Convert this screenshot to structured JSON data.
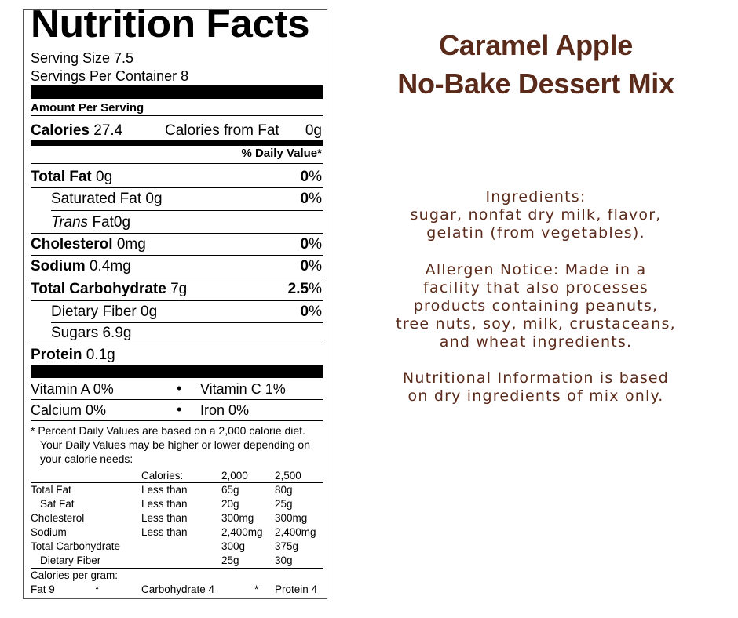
{
  "product": {
    "title_line1": "Caramel Apple",
    "title_line2": "No-Bake Dessert Mix"
  },
  "info": {
    "ingredients": [
      "Ingredients:",
      "sugar, nonfat dry milk, flavor,",
      "gelatin (from vegetables)."
    ],
    "allergen": [
      "Allergen Notice: Made in a",
      "facility that also processes",
      "products containing peanuts,",
      "tree nuts, soy, milk, crustaceans,",
      "and wheat ingredients."
    ],
    "nutrition_note": [
      "Nutritional Information is based",
      "on dry ingredients of mix only."
    ]
  },
  "label": {
    "title": "Nutrition Facts",
    "serving_size": "Serving Size 7.5",
    "servings_per_container": "Servings Per Container 8",
    "amount_per_serving": "Amount Per Serving",
    "calories_label": "Calories",
    "calories_value": "27.4",
    "calories_from_fat_label": "Calories from Fat",
    "calories_from_fat_value": "0g",
    "daily_value_header": "% Daily Value*",
    "rows": {
      "total_fat": {
        "label": "Total Fat",
        "amount": "0g",
        "pct": "0",
        "unit": "%"
      },
      "saturated_fat": {
        "label": "Saturated Fat",
        "amount": "0g",
        "pct": "0",
        "unit": "%"
      },
      "trans_fat": {
        "label": "Trans",
        "rest": "Fat",
        "amount": "0g"
      },
      "cholesterol": {
        "label": "Cholesterol",
        "amount": "0mg",
        "pct": "0",
        "unit": "%"
      },
      "sodium": {
        "label": "Sodium",
        "amount": "0.4mg",
        "pct": "0",
        "unit": "%"
      },
      "total_carb": {
        "label": "Total Carbohydrate",
        "amount": "7g",
        "pct": "2.5",
        "unit": "%"
      },
      "fiber": {
        "label": "Dietary Fiber",
        "amount": "0g",
        "pct": "0",
        "unit": "%"
      },
      "sugars": {
        "label": "Sugars",
        "amount": "6.9g"
      },
      "protein": {
        "label": "Protein",
        "amount": "0.1g"
      }
    },
    "vitamins": {
      "vitamin_a": "Vitamin A 0%",
      "vitamin_c": "Vitamin C 1%",
      "calcium": "Calcium 0%",
      "iron": "Iron 0%",
      "bullet": "•"
    },
    "footnote": [
      "* Percent Daily Values are based on a 2,000 calorie diet.",
      "Your Daily Values may be higher or lower depending on",
      "your calorie needs:"
    ],
    "dv_table": {
      "header": [
        "Calories:",
        "2,000",
        "2,500"
      ],
      "rows": [
        [
          "Total Fat",
          "Less than",
          "65g",
          "80g"
        ],
        [
          "Sat Fat",
          "Less than",
          "20g",
          "25g"
        ],
        [
          "Cholesterol",
          "Less than",
          "300mg",
          "300mg"
        ],
        [
          "Sodium",
          "Less than",
          "2,400mg",
          "2,400mg"
        ],
        [
          "Total Carbohydrate",
          "",
          "300g",
          "375g"
        ],
        [
          "Dietary Fiber",
          "",
          "25g",
          "30g"
        ]
      ]
    },
    "calories_per_gram": "Calories per gram:",
    "cpg": {
      "fat": "Fat 9",
      "carb": "Carbohydrate 4",
      "protein": "Protein 4",
      "star": "*"
    }
  }
}
